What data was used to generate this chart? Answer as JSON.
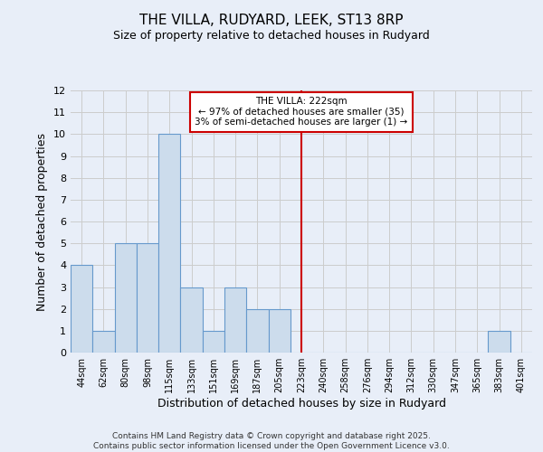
{
  "title1": "THE VILLA, RUDYARD, LEEK, ST13 8RP",
  "title2": "Size of property relative to detached houses in Rudyard",
  "xlabel": "Distribution of detached houses by size in Rudyard",
  "ylabel": "Number of detached properties",
  "categories": [
    "44sqm",
    "62sqm",
    "80sqm",
    "98sqm",
    "115sqm",
    "133sqm",
    "151sqm",
    "169sqm",
    "187sqm",
    "205sqm",
    "223sqm",
    "240sqm",
    "258sqm",
    "276sqm",
    "294sqm",
    "312sqm",
    "330sqm",
    "347sqm",
    "365sqm",
    "383sqm",
    "401sqm"
  ],
  "values": [
    4,
    1,
    5,
    5,
    10,
    3,
    1,
    3,
    2,
    2,
    0,
    0,
    0,
    0,
    0,
    0,
    0,
    0,
    0,
    1,
    0
  ],
  "bar_color": "#ccdcec",
  "bar_edge_color": "#6699cc",
  "vline_x_index": 10,
  "vline_color": "#cc0000",
  "annotation_text": "THE VILLA: 222sqm\n← 97% of detached houses are smaller (35)\n3% of semi-detached houses are larger (1) →",
  "annotation_box_color": "#ffffff",
  "annotation_box_edge": "#cc0000",
  "ylim": [
    0,
    12
  ],
  "yticks": [
    0,
    1,
    2,
    3,
    4,
    5,
    6,
    7,
    8,
    9,
    10,
    11,
    12
  ],
  "plot_bg_color": "#e8eef8",
  "fig_bg_color": "#e8eef8",
  "grid_color": "#cccccc",
  "footer": "Contains HM Land Registry data © Crown copyright and database right 2025.\nContains public sector information licensed under the Open Government Licence v3.0."
}
